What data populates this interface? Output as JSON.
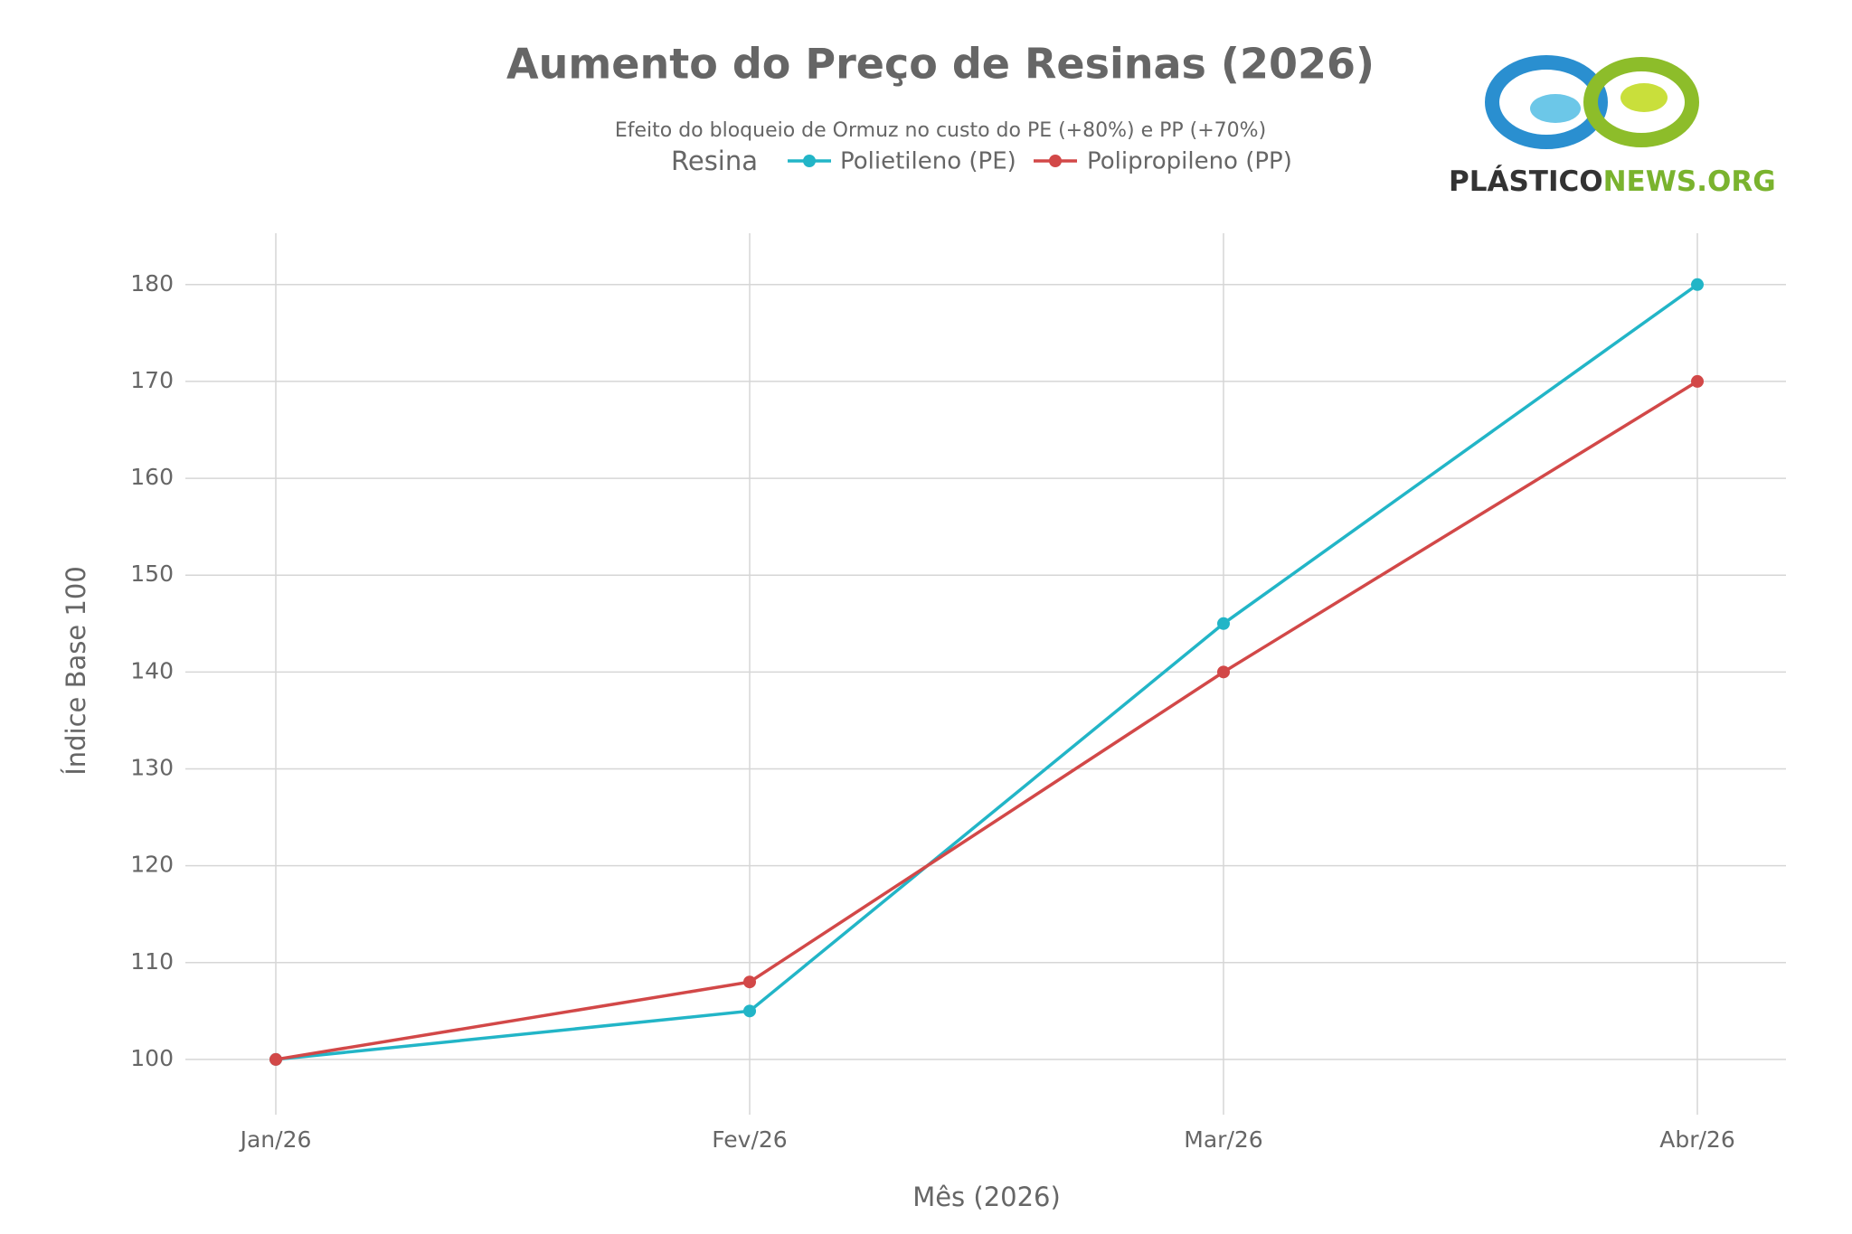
{
  "chart_data": {
    "type": "line",
    "title": "Aumento do Preço de Resinas (2026)",
    "subtitle": "Efeito do bloqueio de Ormuz no custo do PE (+80%) e PP (+70%)",
    "legend_title": "Resina",
    "x_label": "Mês (2026)",
    "y_label": "Índice Base 100",
    "categories": [
      "Jan/26",
      "Fev/26",
      "Mar/26",
      "Abr/26"
    ],
    "series": [
      {
        "name": "Polietileno (PE)",
        "color": "#22b5c7",
        "values": [
          100,
          105,
          145,
          180
        ]
      },
      {
        "name": "Polipropileno (PP)",
        "color": "#d24848",
        "values": [
          100,
          108,
          140,
          170
        ]
      }
    ],
    "ylim": [
      94.3,
      185.3
    ],
    "yticks": [
      100,
      110,
      120,
      130,
      140,
      150,
      160,
      170,
      180
    ],
    "grid": true,
    "logo": [
      "PLÁSTICO",
      "NEWS.ORG"
    ]
  }
}
